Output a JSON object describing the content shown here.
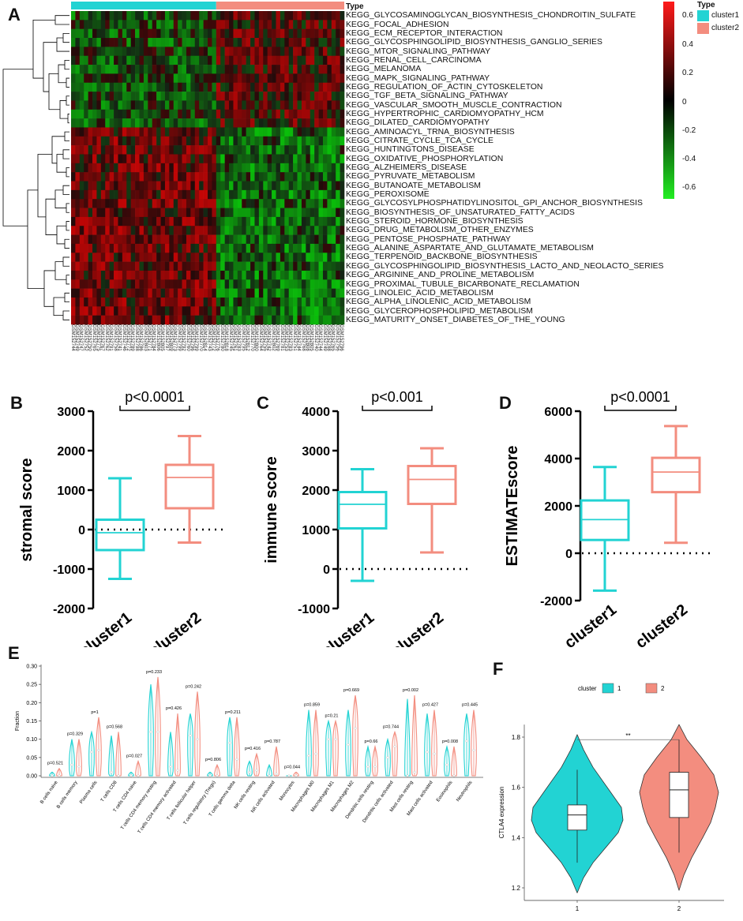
{
  "panels": {
    "A": "A",
    "B": "B",
    "C": "C",
    "D": "D",
    "E": "E",
    "F": "F"
  },
  "heatmap": {
    "type_label": "Type",
    "legend_type_title": "Type",
    "legend_items": [
      {
        "name": "cluster1",
        "color": "#22d3d3"
      },
      {
        "name": "cluster2",
        "color": "#f38d7f"
      }
    ],
    "color_scale": {
      "high": "#ff1a1a",
      "mid": "#000000",
      "low": "#22ee22",
      "ticks": [
        "0.6",
        "0.4",
        "0.2",
        "0",
        "-0.2",
        "-0.4",
        "-0.6"
      ]
    },
    "pathways": [
      "KEGG_GLYCOSAMINOGLYCAN_BIOSYNTHESIS_CHONDROITIN_SULFATE",
      "KEGG_FOCAL_ADHESION",
      "KEGG_ECM_RECEPTOR_INTERACTION",
      "KEGG_GLYCOSPHINGOLIPID_BIOSYNTHESIS_GANGLIO_SERIES",
      "KEGG_MTOR_SIGNALING_PATHWAY",
      "KEGG_RENAL_CELL_CARCINOMA",
      "KEGG_MELANOMA",
      "KEGG_MAPK_SIGNALING_PATHWAY",
      "KEGG_REGULATION_OF_ACTIN_CYTOSKELETON",
      "KEGG_TGF_BETA_SIGNALING_PATHWAY",
      "KEGG_VASCULAR_SMOOTH_MUSCLE_CONTRACTION",
      "KEGG_HYPERTROPHIC_CARDIOMYOPATHY_HCM",
      "KEGG_DILATED_CARDIOMYOPATHY",
      "KEGG_AMINOACYL_TRNA_BIOSYNTHESIS",
      "KEGG_CITRATE_CYCLE_TCA_CYCLE",
      "KEGG_HUNTINGTONS_DISEASE",
      "KEGG_OXIDATIVE_PHOSPHORYLATION",
      "KEGG_ALZHEIMERS_DISEASE",
      "KEGG_PYRUVATE_METABOLISM",
      "KEGG_BUTANOATE_METABOLISM",
      "KEGG_PEROXISOME",
      "KEGG_GLYCOSYLPHOSPHATIDYLINOSITOL_GPI_ANCHOR_BIOSYNTHESIS",
      "KEGG_BIOSYNTHESIS_OF_UNSATURATED_FATTY_ACIDS",
      "KEGG_STEROID_HORMONE_BIOSYNTHESIS",
      "KEGG_DRUG_METABOLISM_OTHER_ENZYMES",
      "KEGG_PENTOSE_PHOSPHATE_PATHWAY",
      "KEGG_ALANINE_ASPARTATE_AND_GLUTAMATE_METABOLISM",
      "KEGG_TERPENOID_BACKBONE_BIOSYNTHESIS",
      "KEGG_GLYCOSPHINGOLIPID_BIOSYNTHESIS_LACTO_AND_NEOLACTO_SERIES",
      "KEGG_ARGININE_AND_PROLINE_METABOLISM",
      "KEGG_PROXIMAL_TUBULE_BICARBONATE_RECLAMATION",
      "KEGG_LINOLEIC_ACID_METABOLISM",
      "KEGG_ALPHA_LINOLENIC_ACID_METABOLISM",
      "KEGG_GLYCEROPHOSPHOLIPID_METABOLISM",
      "KEGG_MATURITY_ONSET_DIABETES_OF_THE_YOUNG"
    ],
    "samples": [
      "GSM152744",
      "GSM152749",
      "GSM152747",
      "GSM152752",
      "GSM152750",
      "GSM152765",
      "GSM152775",
      "GSM152767",
      "GSM152762",
      "GSM152791",
      "GSM152758",
      "GSM152741",
      "GSM152746",
      "GSM152772",
      "GSM152789",
      "GSM152798",
      "GSM152786",
      "GSM152803",
      "GSM152771",
      "GSM152784",
      "GSM152806",
      "GSM152805",
      "GSM152797",
      "GSM152809",
      "GSM152773",
      "GSM152799",
      "GSM152792",
      "GSM152760",
      "GSM152796",
      "GSM152799",
      "GSM152770",
      "GSM152814",
      "GSM152743",
      "GSM152772",
      "GSM152776",
      "GSM152780",
      "GSM152818",
      "GSM152745",
      "GSM152761",
      "GSM152783",
      "GSM152795",
      "GSM152812",
      "GSM152770",
      "GSM152800",
      "GSM152764",
      "GSM152755",
      "GSM152742",
      "GSM152802",
      "GSM152769",
      "GSM152781",
      "GSM152753",
      "GSM152783",
      "GSM152751",
      "GSM152744",
      "GSM152768",
      "GSM152808",
      "GSM152805",
      "GSM152740",
      "GSM152744",
      "GSM152749",
      "GSM152788",
      "GSM152765",
      "GSM152756",
      "GSM152796"
    ]
  },
  "chart_data": [
    {
      "type": "heatmap",
      "rows": 35,
      "columns": 64,
      "column_groups": [
        {
          "name": "cluster1",
          "count": 34
        },
        {
          "name": "cluster2",
          "count": 30
        }
      ],
      "value_range": [
        -0.6,
        0.6
      ],
      "pattern": "rows 1-13: cluster1 mostly negative (green), cluster2 mostly positive (red); rows 14-35: cluster1 mostly positive (red), cluster2 mostly negative (green)"
    },
    {
      "type": "box",
      "panel": "B",
      "title": "p<0.0001",
      "ylabel": "stromal score",
      "ylim": [
        -2000,
        3000
      ],
      "yticks": [
        3000,
        2000,
        1000,
        0,
        -1000,
        -2000
      ],
      "categories": [
        "cluster1",
        "cluster2"
      ],
      "boxes": [
        {
          "min": -1250,
          "q1": -520,
          "median": -80,
          "q3": 250,
          "max": 1300,
          "color": "#22d3d3"
        },
        {
          "min": -330,
          "q1": 540,
          "median": 1320,
          "q3": 1640,
          "max": 2370,
          "color": "#f38d7f"
        }
      ],
      "reference_line": 0
    },
    {
      "type": "box",
      "panel": "C",
      "title": "p<0.001",
      "ylabel": "immune score",
      "ylim": [
        -1000,
        4000
      ],
      "yticks": [
        4000,
        3000,
        2000,
        1000,
        0,
        -1000
      ],
      "categories": [
        "cluster1",
        "cluster2"
      ],
      "boxes": [
        {
          "min": -300,
          "q1": 1030,
          "median": 1640,
          "q3": 1950,
          "max": 2530,
          "color": "#22d3d3"
        },
        {
          "min": 420,
          "q1": 1650,
          "median": 2270,
          "q3": 2610,
          "max": 3060,
          "color": "#f38d7f"
        }
      ],
      "reference_line": 0
    },
    {
      "type": "box",
      "panel": "D",
      "title": "p<0.0001",
      "ylabel": "ESTIMATEscore",
      "ylim": [
        -2000,
        6000
      ],
      "yticks": [
        6000,
        4000,
        2000,
        0,
        -2000
      ],
      "categories": [
        "cluster1",
        "cluster2"
      ],
      "boxes": [
        {
          "min": -1580,
          "q1": 560,
          "median": 1420,
          "q3": 2230,
          "max": 3640,
          "color": "#22d3d3"
        },
        {
          "min": 440,
          "q1": 2580,
          "median": 3430,
          "q3": 4030,
          "max": 5370,
          "color": "#f38d7f"
        }
      ],
      "reference_line": 0
    },
    {
      "type": "violin",
      "panel": "E",
      "ylabel": "Fraction",
      "ylim": [
        0,
        0.3
      ],
      "yticks": [
        "0.00",
        "0.05",
        "0.10",
        "0.15",
        "0.20",
        "0.25",
        "0.30"
      ],
      "categories": [
        "B cells naive",
        "B cells memory",
        "Plasma cells",
        "T cells CD8",
        "T cells CD4 naive",
        "T cells CD4 memory resting",
        "T cells CD4 memory activated",
        "T cells follicular helper",
        "T cells regulatory (Tregs)",
        "T cells gamma delta",
        "NK cells resting",
        "NK cells activated",
        "Monocytes",
        "Macrophages M0",
        "Macrophages M1",
        "Macrophages M2",
        "Dendritic cells resting",
        "Dendritic cells activated",
        "Mast cells resting",
        "Mast cells activated",
        "Eosinophils",
        "Neutrophils"
      ],
      "pvalues": [
        "p=0.521",
        "p=0.329",
        "p=1",
        "p=0.568",
        "p=0.027",
        "p=0.233",
        "p=0.426",
        "p=0.242",
        "p=0.806",
        "p=0.211",
        "p=0.416",
        "p=0.787",
        "p=0.044",
        "p=0.859",
        "p=0.21",
        "p=0.669",
        "p=0.66",
        "p=0.744",
        "p=0.002",
        "p=0.427",
        "p=0.008",
        "p=0.445"
      ],
      "series": [
        {
          "name": "1",
          "color": "#22d3d3",
          "max": [
            0.01,
            0.1,
            0.12,
            0.11,
            0.01,
            0.25,
            0.12,
            0.17,
            0.01,
            0.16,
            0.04,
            0.03,
            0.0,
            0.18,
            0.15,
            0.18,
            0.08,
            0.1,
            0.21,
            0.17,
            0.08,
            0.17
          ],
          "median": [
            0.0,
            0.03,
            0.065,
            0.01,
            0.0,
            0.12,
            0.025,
            0.11,
            0.0,
            0.09,
            0.01,
            0.0,
            0.0,
            0.055,
            0.1,
            0.085,
            0.025,
            0.05,
            0.0,
            0.065,
            0.03,
            0.095
          ]
        },
        {
          "name": "2",
          "color": "#f38d7f",
          "max": [
            0.02,
            0.1,
            0.16,
            0.12,
            0.04,
            0.27,
            0.17,
            0.23,
            0.03,
            0.16,
            0.06,
            0.08,
            0.01,
            0.18,
            0.15,
            0.22,
            0.08,
            0.12,
            0.22,
            0.18,
            0.08,
            0.18
          ],
          "median": [
            0.0,
            0.025,
            0.07,
            0.0,
            0.0,
            0.12,
            0.015,
            0.1,
            0.0,
            0.045,
            0.015,
            0.005,
            0.0,
            0.06,
            0.1,
            0.13,
            0.025,
            0.08,
            0.01,
            0.06,
            0.0,
            0.07
          ]
        }
      ]
    },
    {
      "type": "violin",
      "panel": "F",
      "legend_title": "cluster",
      "ylabel": "CTLA4 expression",
      "ylim": [
        1.15,
        1.85
      ],
      "yticks": [
        "1.2",
        "1.4",
        "1.6",
        "1.8"
      ],
      "categories": [
        "1",
        "2"
      ],
      "significance": "**",
      "series": [
        {
          "name": "1",
          "color": "#22d3d3",
          "min": 1.18,
          "q1": 1.43,
          "median": 1.49,
          "q3": 1.53,
          "max": 1.81,
          "whisker_low": 1.3,
          "whisker_high": 1.67
        },
        {
          "name": "2",
          "color": "#f38d7f",
          "min": 1.19,
          "q1": 1.48,
          "median": 1.59,
          "q3": 1.66,
          "max": 1.85,
          "whisker_low": 1.34,
          "whisker_high": 1.79
        }
      ]
    }
  ]
}
